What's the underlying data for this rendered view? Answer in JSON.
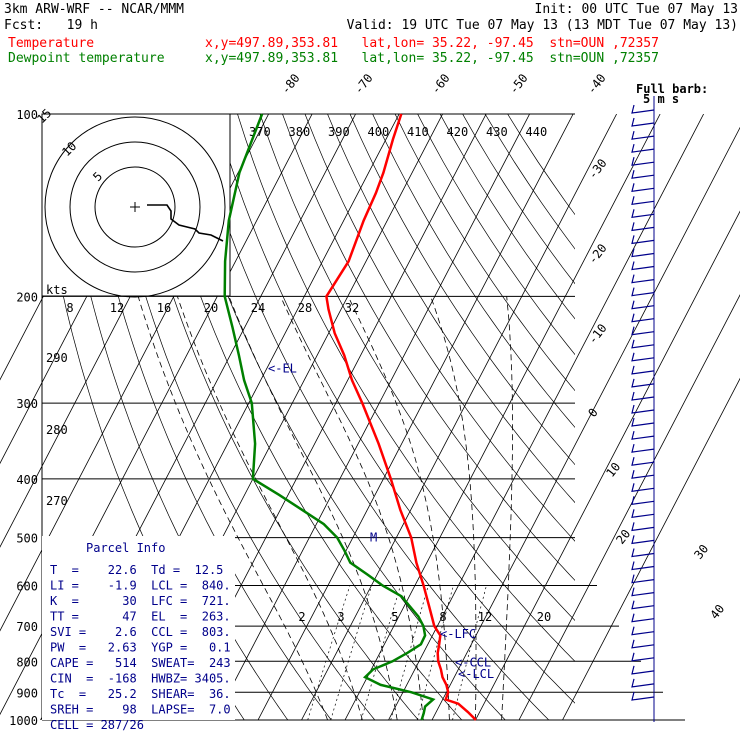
{
  "header": {
    "model": "3km ARW-WRF -- NCAR/MMM",
    "init": "Init: 00 UTC Tue 07 May 13",
    "fcst": "Fcst:   19 h",
    "valid": "Valid: 19 UTC Tue 07 May 13 (13 MDT Tue 07 May 13)",
    "temp_label": "Temperature",
    "dew_label": "Dewpoint temperature",
    "temp_info": "x,y=497.89,353.81   lat,lon= 35.22, -97.45  stn=OUN ,72357",
    "dew_info": "x,y=497.89,353.81   lat,lon= 35.22, -97.45  stn=OUN ,72357"
  },
  "wind_legend": {
    "line1": "Full barb:",
    "line2": "5 m s"
  },
  "hodograph": {
    "ring_labels": [
      "5",
      "10",
      "15"
    ],
    "kts": "kts"
  },
  "parcel_info": {
    "title": "Parcel Info",
    "rows": [
      "T  =    22.6  Td =  12.5",
      "LI =    -1.9  LCL =  840.",
      "K  =      30  LFC =  721.",
      "TT =      47  EL  =  263.",
      "SVI =    2.6  CCL =  803.",
      "PW  =   2.63  YGP =   0.1",
      "CAPE =   514  SWEAT=  243",
      "CIN  =  -168  HWBZ= 3405.",
      "Tc  =   25.2  SHEAR=  36.",
      "SREH =    98  LAPSE=  7.0",
      "CELL = 287/26"
    ]
  },
  "chart_data": {
    "type": "line",
    "title": "",
    "xlabel": "",
    "ylabel": "",
    "pressure_levels": [
      100,
      200,
      300,
      400,
      500,
      600,
      700,
      800,
      900,
      1000
    ],
    "pressure_labels": [
      "100",
      "200",
      "300",
      "400",
      "500",
      "600",
      "700",
      "800",
      "900",
      "1000"
    ],
    "ylim": [
      1000,
      100
    ],
    "y_scale": "log",
    "isotherm_labels_top": [
      "-80",
      "-70",
      "-60",
      "-50",
      "-40"
    ],
    "isotherm_labels_right": [
      "-30",
      "-20",
      "-10",
      "0",
      "10",
      "20",
      "30",
      "40"
    ],
    "theta_labels": [
      "370",
      "380",
      "390",
      "400",
      "410",
      "420",
      "430",
      "440"
    ],
    "theta_labels_left": [
      "290",
      "280",
      "270"
    ],
    "thetae_labels": [
      "8",
      "12",
      "16",
      "20",
      "24",
      "28",
      "32"
    ],
    "mixing_ratio_labels": [
      "2",
      "3",
      "5",
      "8",
      "12",
      "20"
    ],
    "series": [
      {
        "name": "Temperature",
        "color": "#ff0000",
        "points": [
          [
            1000,
            30.1
          ],
          [
            970,
            27.3
          ],
          [
            940,
            24.1
          ],
          [
            925,
            20.7
          ],
          [
            900,
            20.4
          ],
          [
            875,
            19.1
          ],
          [
            850,
            17.3
          ],
          [
            825,
            16.0
          ],
          [
            800,
            14.4
          ],
          [
            775,
            13.3
          ],
          [
            750,
            12.6
          ],
          [
            725,
            11.8
          ],
          [
            700,
            9.3
          ],
          [
            650,
            5.8
          ],
          [
            600,
            2.0
          ],
          [
            550,
            -2.4
          ],
          [
            500,
            -6.6
          ],
          [
            450,
            -12.4
          ],
          [
            400,
            -18.3
          ],
          [
            350,
            -25.3
          ],
          [
            300,
            -33.9
          ],
          [
            275,
            -39.0
          ],
          [
            250,
            -43.8
          ],
          [
            230,
            -48.6
          ],
          [
            210,
            -52.9
          ],
          [
            200,
            -54.9
          ],
          [
            175,
            -54.0
          ],
          [
            150,
            -55.4
          ],
          [
            135,
            -55.9
          ],
          [
            125,
            -56.6
          ],
          [
            110,
            -58.4
          ],
          [
            100,
            -59.5
          ]
        ]
      },
      {
        "name": "Dewpoint temperature",
        "color": "#008000",
        "points": [
          [
            1000,
            17.6
          ],
          [
            975,
            17.3
          ],
          [
            950,
            16.8
          ],
          [
            925,
            17.8
          ],
          [
            900,
            12.0
          ],
          [
            875,
            4.0
          ],
          [
            850,
            -0.5
          ],
          [
            825,
            0.4
          ],
          [
            800,
            3.9
          ],
          [
            775,
            6.3
          ],
          [
            750,
            8.4
          ],
          [
            725,
            8.3
          ],
          [
            700,
            6.8
          ],
          [
            675,
            4.5
          ],
          [
            650,
            1.4
          ],
          [
            625,
            -1.8
          ],
          [
            600,
            -7.4
          ],
          [
            575,
            -12.3
          ],
          [
            550,
            -17.6
          ],
          [
            525,
            -20.4
          ],
          [
            500,
            -23.6
          ],
          [
            475,
            -28.3
          ],
          [
            450,
            -35.0
          ],
          [
            425,
            -42.1
          ],
          [
            400,
            -50.0
          ],
          [
            350,
            -53.7
          ],
          [
            325,
            -56.4
          ],
          [
            300,
            -59.3
          ],
          [
            275,
            -63.8
          ],
          [
            250,
            -68.0
          ],
          [
            225,
            -72.8
          ],
          [
            200,
            -78.3
          ],
          [
            175,
            -82.4
          ],
          [
            150,
            -86.4
          ],
          [
            125,
            -89.7
          ],
          [
            100,
            -91.5
          ]
        ]
      }
    ],
    "annotations": [
      {
        "text": "<-EL",
        "pressure": 263
      },
      {
        "text": "M",
        "pressure": 500
      },
      {
        "text": "<-LFC",
        "pressure": 721
      },
      {
        "text": "<-CCL",
        "pressure": 803
      },
      {
        "text": "<-LCL",
        "pressure": 840
      }
    ],
    "hodograph_points": [
      [
        3,
        1
      ],
      [
        8,
        1
      ],
      [
        9,
        -2
      ],
      [
        9,
        -6
      ],
      [
        11,
        -9
      ],
      [
        13,
        -10
      ],
      [
        15,
        -11
      ],
      [
        16,
        -13
      ],
      [
        19,
        -14
      ],
      [
        21,
        -16
      ],
      [
        22,
        -17
      ]
    ],
    "wind_barbs": {
      "pressures": [
        100,
        200,
        300,
        400,
        500,
        600,
        700,
        800,
        900,
        1000
      ],
      "count": 46
    }
  }
}
